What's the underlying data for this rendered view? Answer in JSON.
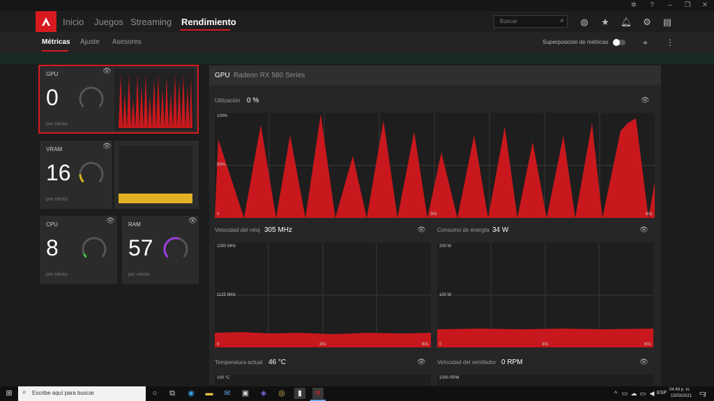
{
  "header": {
    "nav": [
      "Inicio",
      "Juegos",
      "Streaming",
      "Rendimiento"
    ],
    "search_placeholder": "Buscar"
  },
  "subnav": {
    "tabs": [
      "Métricas",
      "Ajuste",
      "Asesores"
    ],
    "overlay_label": "Superposición de métricas",
    "overlay_on": false
  },
  "tiles": {
    "gpu": {
      "label": "GPU",
      "value": "0",
      "unit": "por ciento",
      "level": 0
    },
    "vram": {
      "label": "VRAM",
      "value": "16",
      "unit": "por ciento",
      "level": 0.16
    },
    "cpu": {
      "label": "CPU",
      "value": "8",
      "unit": "por ciento",
      "level": 0.08
    },
    "ram": {
      "label": "RAM",
      "value": "57",
      "unit": "por ciento",
      "level": 0.57
    }
  },
  "panel": {
    "title": "GPU",
    "device": "Radeon RX 580 Series"
  },
  "charts": {
    "util": {
      "label": "Utilización",
      "value": "0 %",
      "ytop": "100%",
      "ymid": "50%",
      "x0": "0",
      "xmid": "30s",
      "xend": "60s"
    },
    "clock": {
      "label": "Velocidad del reloj",
      "value": "305 MHz",
      "ytop": "2250 MHz",
      "ymid": "1125 MHz",
      "x0": "0",
      "xmid": "30s",
      "xend": "60s"
    },
    "power": {
      "label": "Consumo de energía",
      "value": "34 W",
      "ytop": "200 W",
      "ymid": "100 W",
      "x0": "0",
      "xmid": "30s",
      "xend": "60s"
    },
    "temp": {
      "label": "Temperatura actual",
      "value": "46 °C",
      "ytop": "100 °C"
    },
    "fan": {
      "label": "Velocidad del ventilador",
      "value": "0 RPM",
      "ytop": "1000 RPM"
    }
  },
  "colors": {
    "accent": "#d71a1f",
    "vram": "#e3b224",
    "cpu": "#3cc43c",
    "ram": "#9b3de0"
  },
  "taskbar": {
    "search_placeholder": "Escribe aquí para buscar",
    "lang": "ESP",
    "time": "04:49 p. m.",
    "date": "15/03/2021",
    "notifications": "2"
  }
}
